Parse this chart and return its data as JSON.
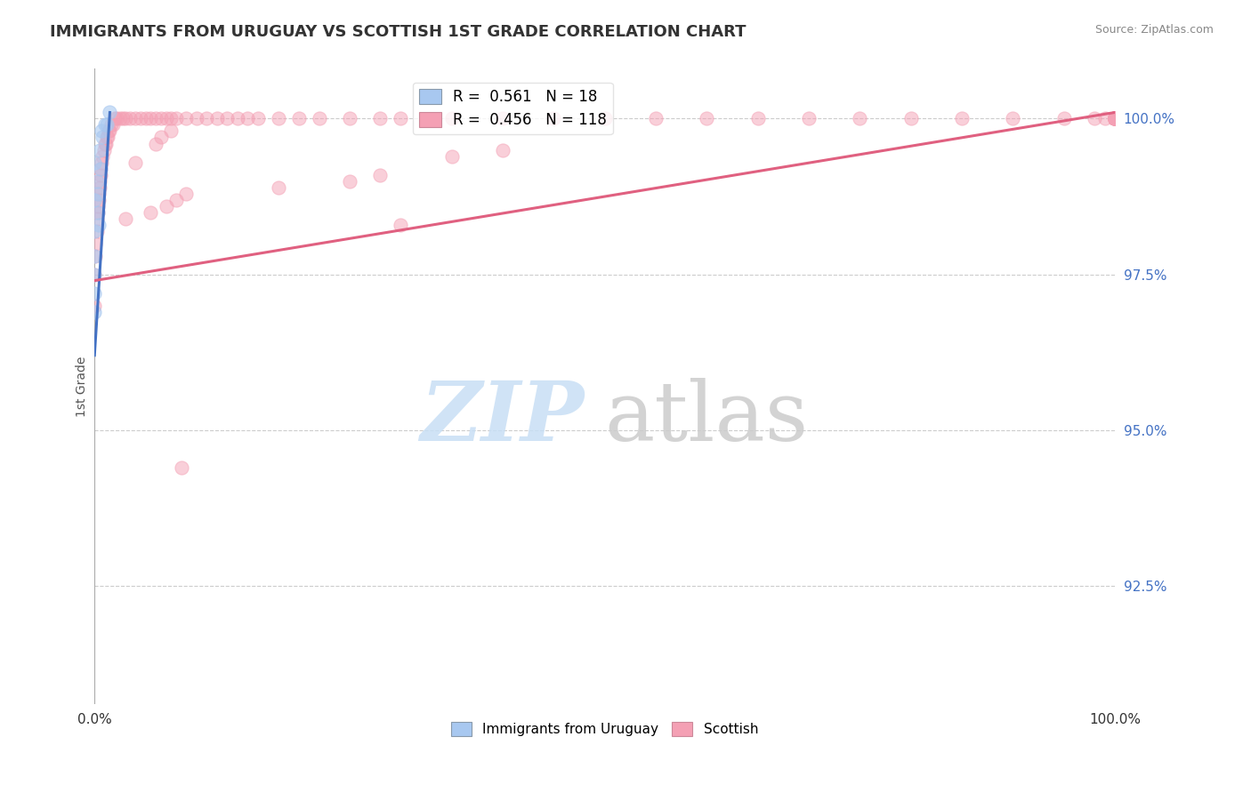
{
  "title": "IMMIGRANTS FROM URUGUAY VS SCOTTISH 1ST GRADE CORRELATION CHART",
  "source_text": "Source: ZipAtlas.com",
  "ylabel": "1st Grade",
  "xlim": [
    0.0,
    1.0
  ],
  "yticks": [
    0.925,
    0.95,
    0.975,
    1.0
  ],
  "ytick_labels": [
    "92.5%",
    "95.0%",
    "97.5%",
    "100.0%"
  ],
  "xtick_labels": [
    "0.0%",
    "100.0%"
  ],
  "xticks": [
    0.0,
    1.0
  ],
  "blue_scatter_x": [
    0.0,
    0.0,
    0.0,
    0.0,
    0.0,
    0.0,
    0.0,
    0.002,
    0.003,
    0.003,
    0.004,
    0.005,
    0.006,
    0.007,
    0.008,
    0.01,
    0.012,
    0.015
  ],
  "blue_scatter_y": [
    0.993,
    0.987,
    0.982,
    0.978,
    0.975,
    0.972,
    0.969,
    0.99,
    0.988,
    0.985,
    0.983,
    0.995,
    0.992,
    0.998,
    0.997,
    0.999,
    0.999,
    1.001
  ],
  "pink_scatter_x": [
    0.0,
    0.0,
    0.001,
    0.001,
    0.002,
    0.002,
    0.003,
    0.003,
    0.004,
    0.004,
    0.005,
    0.005,
    0.006,
    0.006,
    0.007,
    0.008,
    0.009,
    0.01,
    0.011,
    0.012,
    0.013,
    0.014,
    0.015,
    0.016,
    0.018,
    0.02,
    0.022,
    0.025,
    0.028,
    0.03,
    0.035,
    0.04,
    0.045,
    0.05,
    0.055,
    0.06,
    0.065,
    0.07,
    0.075,
    0.08,
    0.09,
    0.1,
    0.11,
    0.12,
    0.13,
    0.14,
    0.15,
    0.16,
    0.18,
    0.2,
    0.22,
    0.25,
    0.28,
    0.3,
    0.35,
    0.4,
    0.45,
    0.5,
    0.55,
    0.6,
    0.65,
    0.7,
    0.75,
    0.8,
    0.85,
    0.9,
    0.95,
    0.98,
    0.99,
    1.0,
    1.0,
    1.0,
    1.0,
    1.0,
    1.0,
    1.0,
    1.0,
    1.0,
    1.0,
    1.0,
    1.0,
    1.0,
    1.0,
    1.0,
    1.0,
    1.0,
    1.0,
    1.0,
    1.0,
    1.0,
    1.0,
    1.0,
    1.0,
    1.0,
    1.0,
    1.0,
    1.0,
    1.0,
    0.3,
    0.03,
    0.055,
    0.07,
    0.08,
    0.09,
    0.18,
    0.25,
    0.28,
    0.04,
    0.35,
    0.4,
    0.06,
    0.065,
    0.075,
    0.085,
    0.1,
    0.12,
    0.944
  ],
  "pink_scatter_y": [
    0.97,
    0.975,
    0.978,
    0.98,
    0.982,
    0.984,
    0.985,
    0.986,
    0.987,
    0.988,
    0.989,
    0.99,
    0.991,
    0.992,
    0.993,
    0.994,
    0.995,
    0.996,
    0.996,
    0.997,
    0.997,
    0.998,
    0.998,
    0.999,
    0.999,
    1.0,
    1.0,
    1.0,
    1.0,
    1.0,
    1.0,
    1.0,
    1.0,
    1.0,
    1.0,
    1.0,
    1.0,
    1.0,
    1.0,
    1.0,
    1.0,
    1.0,
    1.0,
    1.0,
    1.0,
    1.0,
    1.0,
    1.0,
    1.0,
    1.0,
    1.0,
    1.0,
    1.0,
    1.0,
    1.0,
    1.0,
    1.0,
    1.0,
    1.0,
    1.0,
    1.0,
    1.0,
    1.0,
    1.0,
    1.0,
    1.0,
    1.0,
    1.0,
    1.0,
    1.0,
    1.0,
    1.0,
    1.0,
    1.0,
    1.0,
    1.0,
    1.0,
    1.0,
    1.0,
    1.0,
    1.0,
    1.0,
    1.0,
    1.0,
    1.0,
    1.0,
    1.0,
    1.0,
    1.0,
    1.0,
    1.0,
    1.0,
    1.0,
    1.0,
    1.0,
    1.0,
    1.0,
    1.0,
    0.983,
    0.984,
    0.985,
    0.986,
    0.987,
    0.988,
    0.989,
    0.99,
    0.991,
    0.993,
    0.994,
    0.995,
    0.996,
    0.997,
    0.998,
    0.944
  ],
  "blue_line_x": [
    0.0,
    0.015
  ],
  "blue_line_y": [
    0.962,
    1.001
  ],
  "pink_line_x": [
    0.0,
    1.0
  ],
  "pink_line_y": [
    0.974,
    1.001
  ],
  "blue_color": "#A8C8F0",
  "pink_color": "#F4A0B4",
  "blue_line_color": "#4472C4",
  "pink_line_color": "#E06080",
  "marker_size": 120,
  "background_color": "#FFFFFF",
  "grid_color": "#CCCCCC"
}
